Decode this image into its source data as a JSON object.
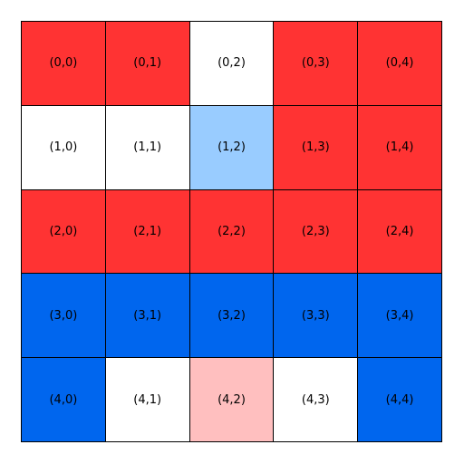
{
  "grid": {
    "rows": [
      [
        {
          "label": "(0,0)",
          "color": "#ff3333"
        },
        {
          "label": "(0,1)",
          "color": "#ff3333"
        },
        {
          "label": "(0,2)",
          "color": "#ffffff"
        },
        {
          "label": "(0,3)",
          "color": "#ff3333"
        },
        {
          "label": "(0,4)",
          "color": "#ff3333"
        }
      ],
      [
        {
          "label": "(1,0)",
          "color": "#ffffff"
        },
        {
          "label": "(1,1)",
          "color": "#ffffff"
        },
        {
          "label": "(1,2)",
          "color": "#99ccff"
        },
        {
          "label": "(1,3)",
          "color": "#ff3333"
        },
        {
          "label": "(1,4)",
          "color": "#ff3333"
        }
      ],
      [
        {
          "label": "(2,0)",
          "color": "#ff3333"
        },
        {
          "label": "(2,1)",
          "color": "#ff3333"
        },
        {
          "label": "(2,2)",
          "color": "#ff3333"
        },
        {
          "label": "(2,3)",
          "color": "#ff3333"
        },
        {
          "label": "(2,4)",
          "color": "#ff3333"
        }
      ],
      [
        {
          "label": "(3,0)",
          "color": "#0066ee"
        },
        {
          "label": "(3,1)",
          "color": "#0066ee"
        },
        {
          "label": "(3,2)",
          "color": "#0066ee"
        },
        {
          "label": "(3,3)",
          "color": "#0066ee"
        },
        {
          "label": "(3,4)",
          "color": "#0066ee"
        }
      ],
      [
        {
          "label": "(4,0)",
          "color": "#0066ee"
        },
        {
          "label": "(4,1)",
          "color": "#ffffff"
        },
        {
          "label": "(4,2)",
          "color": "#ffbfbf"
        },
        {
          "label": "(4,3)",
          "color": "#ffffff"
        },
        {
          "label": "(4,4)",
          "color": "#0066ee"
        }
      ]
    ]
  }
}
